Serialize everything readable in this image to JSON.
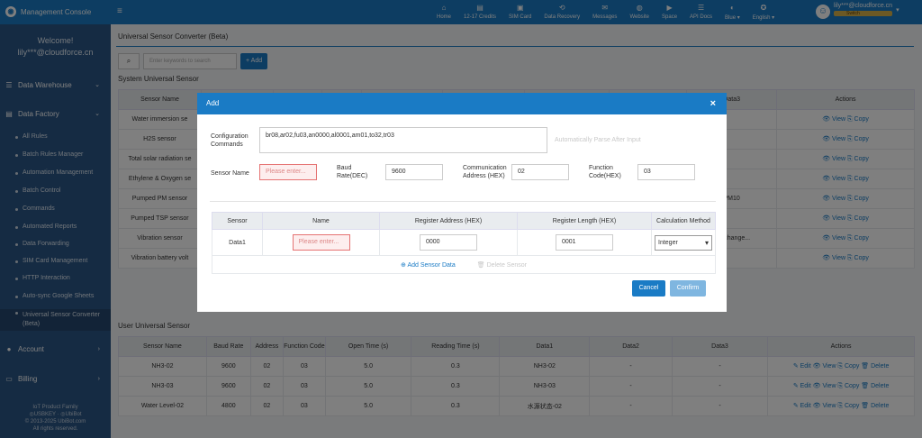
{
  "topbar": {
    "app_title": "Management Console",
    "nav": [
      {
        "icon": "home-icon",
        "glyph": "⌂",
        "label": "Home"
      },
      {
        "icon": "credit-icon",
        "glyph": "▤",
        "label": "12-17 Credits"
      },
      {
        "icon": "sim-card-icon",
        "glyph": "▣",
        "label": "SIM Card"
      },
      {
        "icon": "data-recovery-icon",
        "glyph": "⟲",
        "label": "Data Recovery"
      },
      {
        "icon": "messages-icon",
        "glyph": "✉",
        "label": "Messages"
      },
      {
        "icon": "website-icon",
        "glyph": "◍",
        "label": "Website"
      },
      {
        "icon": "space-icon",
        "glyph": "▶",
        "label": "Space"
      },
      {
        "icon": "api-docs-icon",
        "glyph": "☰",
        "label": "API Docs"
      },
      {
        "icon": "theme-icon",
        "glyph": "◐",
        "label": "Blue ▾"
      },
      {
        "icon": "language-icon",
        "glyph": "✪",
        "label": "English ▾"
      }
    ],
    "user_email": "lily***@cloudforce.cn",
    "switch_label": "Switch"
  },
  "sidebar": {
    "welcome": "Welcome!",
    "user": "lily***@cloudforce.cn",
    "groups": [
      {
        "label": "Data Warehouse",
        "icon": "database-icon"
      },
      {
        "label": "Data Factory",
        "icon": "factory-icon"
      },
      {
        "label": "Account",
        "icon": "account-icon"
      },
      {
        "label": "Billing",
        "icon": "billing-icon"
      }
    ],
    "items": [
      "All Rules",
      "Batch Rules Manager",
      "Automation Management",
      "Batch Control",
      "Commands",
      "Automated Reports",
      "Data Forwarding",
      "SIM Card Management",
      "HTTP Interaction",
      "Auto-sync Google Sheets",
      "Universal Sensor Converter (Beta)"
    ],
    "footer": [
      "IoT Product Family",
      "◎USBKEY · ◎UbiBot",
      "© 2013-2025 UbiBot.com",
      "All rights reserved."
    ]
  },
  "page": {
    "title": "Universal Sensor Converter (Beta)",
    "search_placeholder": "Enter keywords to search",
    "add_button": "+ Add",
    "system_section": "System Universal Sensor",
    "system_headers": [
      "Sensor Name",
      "",
      "",
      "",
      "",
      "",
      "",
      "",
      "Data3",
      "Actions"
    ],
    "system_rows": [
      {
        "name": "Water immersion se",
        "data": "",
        "actions": "👁 View  ⎘ Copy"
      },
      {
        "name": "H2S sensor",
        "data": "",
        "actions": "👁 View  ⎘ Copy"
      },
      {
        "name": "Total solar radiation se",
        "data": "",
        "actions": "👁 View  ⎘ Copy"
      },
      {
        "name": "Ethylene & Oxygen se",
        "data": "",
        "actions": "👁 View  ⎘ Copy"
      },
      {
        "name": "Pumped PM sensor",
        "data": "PM10",
        "actions": "👁 View  ⎘ Copy"
      },
      {
        "name": "Pumped TSP sensor",
        "data": "",
        "actions": "👁 View  ⎘ Copy"
      },
      {
        "name": "Vibration sensor",
        "data": "ard change...",
        "actions": "👁 View  ⎘ Copy"
      },
      {
        "name": "Vibration battery volt",
        "data": "",
        "actions": "👁 View  ⎘ Copy"
      }
    ],
    "user_section": "User Universal Sensor",
    "user_headers": [
      "Sensor Name",
      "Baud Rate",
      "Address",
      "Function Code",
      "Open Time (s)",
      "Reading Time (s)",
      "Data1",
      "Data2",
      "Data3",
      "Actions"
    ],
    "user_rows": [
      [
        "NH3-02",
        "9600",
        "02",
        "03",
        "5.0",
        "0.3",
        "NH3-02",
        "-",
        "-",
        "✎ Edit  👁 View  ⎘ Copy  🗑 Delete"
      ],
      [
        "NH3-03",
        "9600",
        "02",
        "03",
        "5.0",
        "0.3",
        "NH3-03",
        "-",
        "-",
        "✎ Edit  👁 View  ⎘ Copy  🗑 Delete"
      ],
      [
        "Water Level-02",
        "4800",
        "02",
        "03",
        "5.0",
        "0.3",
        "水源状态-02",
        "-",
        "-",
        "✎ Edit  👁 View  ⎘ Copy  🗑 Delete"
      ]
    ]
  },
  "modal": {
    "title": "Add",
    "close": "×",
    "config_label": "Configuration Commands",
    "config_value": "br08,ar02,fu03,an0000,al0001,am01,to32,tr03",
    "auto_parse": "Automatically Parse After Input",
    "sensor_name_label": "Sensor Name",
    "sensor_name_placeholder": "Please enter...",
    "baud_label": "Baud Rate(DEC)",
    "baud_value": "9600",
    "comm_label": "Communication Address (HEX)",
    "comm_value": "02",
    "func_label": "Function Code(HEX)",
    "func_value": "03",
    "table_headers": [
      "Sensor",
      "Name",
      "Register Address (HEX)",
      "Register Length (HEX)",
      "Calculation Method"
    ],
    "row": {
      "sensor": "Data1",
      "name_placeholder": "Please enter...",
      "reg_addr": "0000",
      "reg_len": "0001",
      "calc": "Integer"
    },
    "add_sensor": "⊕ Add Sensor Data",
    "delete_sensor": "🗑 Delete Sensor",
    "cancel": "Cancel",
    "confirm": "Confirm"
  }
}
